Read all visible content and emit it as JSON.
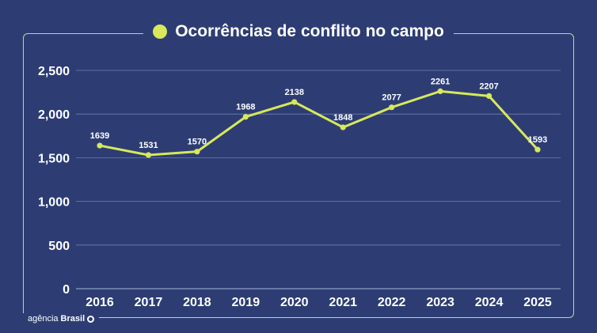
{
  "title": "Ocorrências de conflito no campo",
  "logo": {
    "prefix": "agência",
    "brand": "Brasil"
  },
  "colors": {
    "background": "#2d3d74",
    "accent": "#d8e85a",
    "frame": "#c9d96a",
    "grid": "#6f7fae",
    "text": "#ffffff"
  },
  "chart_data": {
    "type": "line",
    "title": "Ocorrências de conflito no campo",
    "xlabel": "",
    "ylabel": "",
    "x": [
      "2016",
      "2017",
      "2018",
      "2019",
      "2020",
      "2021",
      "2022",
      "2023",
      "2024",
      "2025"
    ],
    "series": [
      {
        "values": [
          1639,
          1531,
          1570,
          1968,
          2138,
          1848,
          2077,
          2261,
          2207,
          1593
        ]
      }
    ],
    "data_labels": [
      "1639",
      "1531",
      "1570",
      "1968",
      "2138",
      "1848",
      "2077",
      "2261",
      "2207",
      "1593"
    ],
    "y_ticks": [
      0,
      500,
      1000,
      1500,
      2000,
      2500
    ],
    "y_tick_labels": [
      "0",
      "500",
      "1,000",
      "1,500",
      "2,000",
      "2,500"
    ],
    "ylim": [
      0,
      2500
    ],
    "grid": true,
    "legend": "none"
  }
}
